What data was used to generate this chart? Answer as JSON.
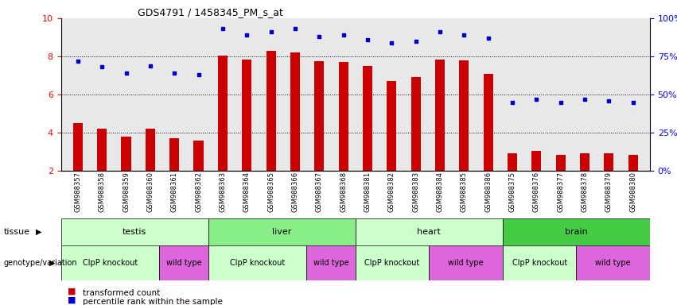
{
  "title": "GDS4791 / 1458345_PM_s_at",
  "samples": [
    "GSM988357",
    "GSM988358",
    "GSM988359",
    "GSM988360",
    "GSM988361",
    "GSM988362",
    "GSM988363",
    "GSM988364",
    "GSM988365",
    "GSM988366",
    "GSM988367",
    "GSM988368",
    "GSM988381",
    "GSM988382",
    "GSM988383",
    "GSM988384",
    "GSM988385",
    "GSM988386",
    "GSM988375",
    "GSM988376",
    "GSM988377",
    "GSM988378",
    "GSM988379",
    "GSM988380"
  ],
  "bar_values": [
    4.5,
    4.2,
    3.8,
    4.2,
    3.7,
    3.6,
    8.05,
    7.85,
    8.3,
    8.2,
    7.75,
    7.7,
    7.5,
    6.7,
    6.9,
    7.85,
    7.8,
    7.1,
    2.9,
    3.05,
    2.85,
    2.9,
    2.9,
    2.85
  ],
  "percentile_values": [
    72,
    68,
    64,
    69,
    64,
    63,
    93,
    89,
    91,
    93,
    88,
    89,
    86,
    84,
    85,
    91,
    89,
    87,
    45,
    47,
    45,
    47,
    46,
    45
  ],
  "bar_color": "#cc0000",
  "percentile_color": "#0000cc",
  "plot_bg_color": "#e8e8e8",
  "fig_bg_color": "#ffffff",
  "ylim_left": [
    2,
    10
  ],
  "ylim_right": [
    0,
    100
  ],
  "yticks_left": [
    2,
    4,
    6,
    8,
    10
  ],
  "ytick_labels_left": [
    "2",
    "4",
    "6",
    "8",
    "10"
  ],
  "yticks_right": [
    0,
    25,
    50,
    75,
    100
  ],
  "ytick_labels_right": [
    "0%",
    "25%",
    "50%",
    "75%",
    "100%"
  ],
  "grid_values": [
    4,
    6,
    8
  ],
  "tissues": [
    {
      "label": "testis",
      "start": 0,
      "end": 6,
      "color": "#ccffcc"
    },
    {
      "label": "liver",
      "start": 6,
      "end": 12,
      "color": "#88ee88"
    },
    {
      "label": "heart",
      "start": 12,
      "end": 18,
      "color": "#ccffcc"
    },
    {
      "label": "brain",
      "start": 18,
      "end": 24,
      "color": "#44cc44"
    }
  ],
  "genotypes": [
    {
      "label": "ClpP knockout",
      "start": 0,
      "end": 4,
      "color": "#ccffcc"
    },
    {
      "label": "wild type",
      "start": 4,
      "end": 6,
      "color": "#dd66dd"
    },
    {
      "label": "ClpP knockout",
      "start": 6,
      "end": 10,
      "color": "#ccffcc"
    },
    {
      "label": "wild type",
      "start": 10,
      "end": 12,
      "color": "#dd66dd"
    },
    {
      "label": "ClpP knockout",
      "start": 12,
      "end": 15,
      "color": "#ccffcc"
    },
    {
      "label": "wild type",
      "start": 15,
      "end": 18,
      "color": "#dd66dd"
    },
    {
      "label": "ClpP knockout",
      "start": 18,
      "end": 21,
      "color": "#ccffcc"
    },
    {
      "label": "wild type",
      "start": 21,
      "end": 24,
      "color": "#dd66dd"
    }
  ],
  "legend_items": [
    {
      "label": "transformed count",
      "color": "#cc0000"
    },
    {
      "label": "percentile rank within the sample",
      "color": "#0000cc"
    }
  ],
  "tissue_label": "tissue",
  "genotype_label": "genotype/variation",
  "bar_width": 0.4
}
